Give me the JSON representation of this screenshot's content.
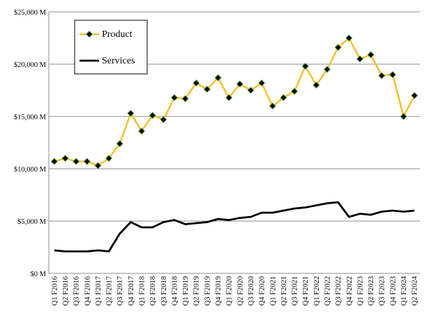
{
  "chart_data": {
    "type": "line",
    "title": "",
    "xlabel": "",
    "ylabel": "",
    "ylim": [
      0,
      25000
    ],
    "yticks": [
      0,
      5000,
      10000,
      15000,
      20000,
      25000
    ],
    "ytick_labels": [
      "$0 M",
      "$5,000 M",
      "$10,000 M",
      "$15,000 M",
      "$20,000 M",
      "$25,000 M"
    ],
    "grid": "horizontal",
    "legend_position": "top-left",
    "categories": [
      "Q1 F2016",
      "Q2 F2016",
      "Q3 F2016",
      "Q4 F2016",
      "Q1 F2017",
      "Q2 F2017",
      "Q3 F2017",
      "Q4 F2017",
      "Q1 F2018",
      "Q2 F2018",
      "Q3 F2018",
      "Q4 F2018",
      "Q1 F2019",
      "Q2 F2019",
      "Q3 F2019",
      "Q4 F2019",
      "Q1 F2020",
      "Q2 F2020",
      "Q3 F2020",
      "Q4 F2020",
      "Q1 F2021",
      "Q2 F2021",
      "Q3 F2021",
      "Q4 F2021",
      "Q1 F2022",
      "Q2 F2022",
      "Q3 F2022",
      "Q4 F2022",
      "Q1 F2023",
      "Q2 F2023",
      "Q3 F2023",
      "Q4 F2023",
      "Q1 F2024",
      "Q2 F2024"
    ],
    "series": [
      {
        "name": "Product",
        "color": "#f2c12e",
        "marker": "diamond",
        "values": [
          10700,
          11000,
          10700,
          10700,
          10300,
          11000,
          12400,
          15300,
          13600,
          15100,
          14700,
          16800,
          16700,
          18200,
          17600,
          18700,
          16800,
          18100,
          17500,
          18200,
          16000,
          16800,
          17400,
          19800,
          18000,
          19500,
          21600,
          22500,
          20500,
          20900,
          18900,
          19000,
          15000,
          17000
        ]
      },
      {
        "name": "Services",
        "color": "#000000",
        "marker": "none",
        "values": [
          2200,
          2100,
          2100,
          2100,
          2200,
          2100,
          3800,
          4900,
          4400,
          4400,
          4900,
          5100,
          4700,
          4800,
          4900,
          5200,
          5100,
          5300,
          5400,
          5800,
          5800,
          6000,
          6200,
          6300,
          6500,
          6700,
          6800,
          5400,
          5700,
          5600,
          5900,
          6000,
          5900,
          6000
        ]
      }
    ]
  }
}
